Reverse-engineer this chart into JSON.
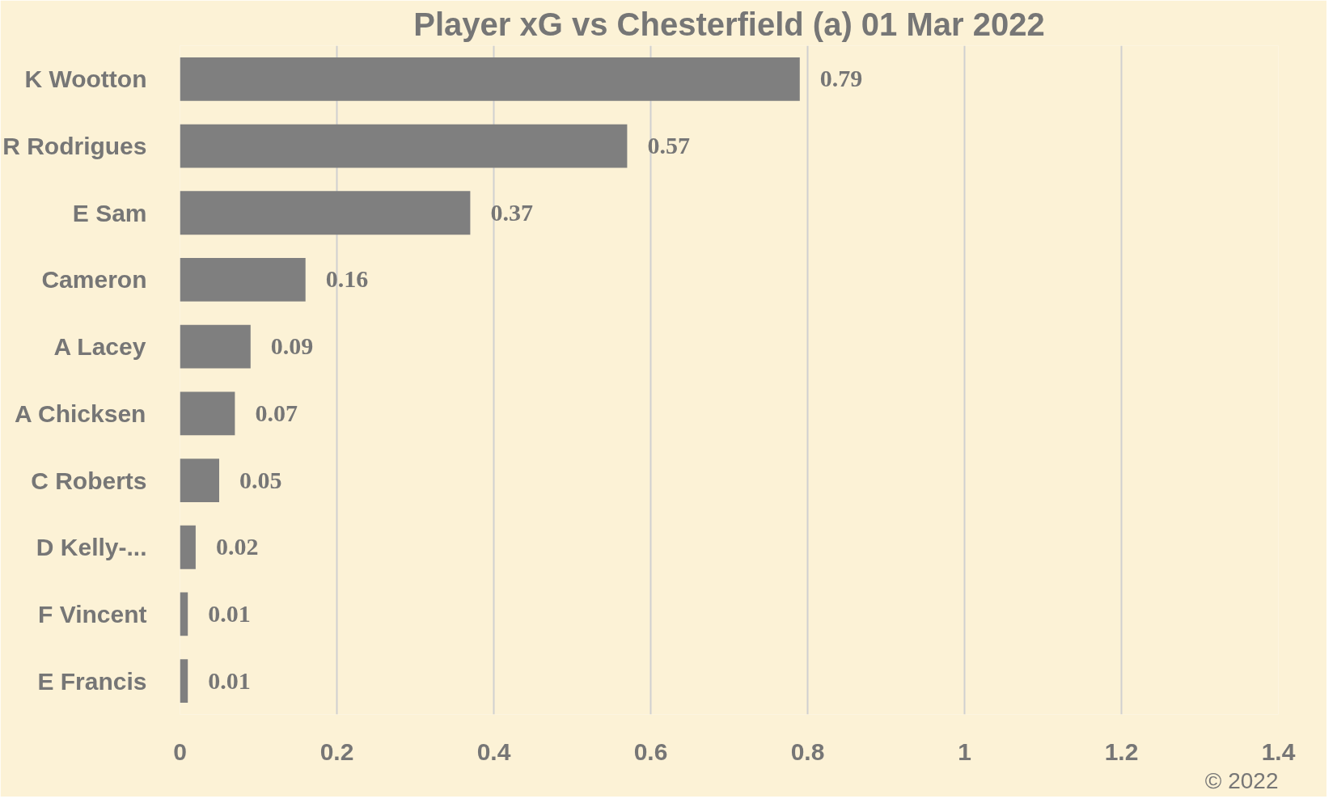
{
  "chart_data": {
    "type": "bar",
    "orientation": "horizontal",
    "title": "Player xG vs Chesterfield (a) 01 Mar 2022",
    "categories": [
      "K Wootton",
      "R Rodrigues",
      "E Sam",
      "Cameron",
      "A Lacey",
      "A Chicksen",
      "C Roberts",
      "D Kelly-...",
      "F Vincent",
      "E Francis"
    ],
    "values": [
      0.79,
      0.57,
      0.37,
      0.16,
      0.09,
      0.07,
      0.05,
      0.02,
      0.01,
      0.01
    ],
    "color": "#7f7f7f",
    "xlim": [
      0,
      1.4
    ],
    "xticks": [
      0,
      0.2,
      0.4,
      0.6,
      0.8,
      1,
      1.2,
      1.4
    ],
    "grid": "x",
    "data_labels": true,
    "annotations": [
      "© 2022"
    ]
  }
}
